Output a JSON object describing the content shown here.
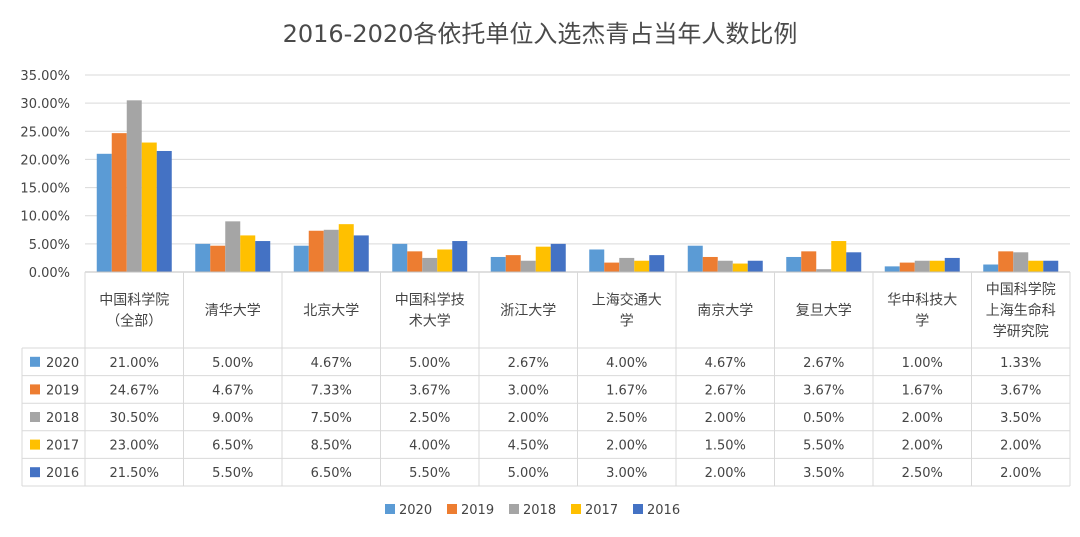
{
  "chart_data": {
    "type": "bar",
    "title": "2016-2020各依托单位入选杰青占当年人数比例",
    "categories": [
      [
        "中国科学院",
        "（全部）"
      ],
      [
        "清华大学"
      ],
      [
        "北京大学"
      ],
      [
        "中国科学技",
        "术大学"
      ],
      [
        "浙江大学"
      ],
      [
        "上海交通大",
        "学"
      ],
      [
        "南京大学"
      ],
      [
        "复旦大学"
      ],
      [
        "华中科技大",
        "学"
      ],
      [
        "中国科学院",
        "上海生命科",
        "学研究院"
      ]
    ],
    "ylim": [
      0,
      35
    ],
    "yticks": [
      "0.00%",
      "5.00%",
      "10.00%",
      "15.00%",
      "20.00%",
      "25.00%",
      "30.00%",
      "35.00%"
    ],
    "grid": true,
    "legend_position": "bottom",
    "series": [
      {
        "name": "2020",
        "color": "#5b9bd5",
        "values": [
          21.0,
          5.0,
          4.67,
          5.0,
          2.67,
          4.0,
          4.67,
          2.67,
          1.0,
          1.33
        ],
        "labels": [
          "21.00%",
          "5.00%",
          "4.67%",
          "5.00%",
          "2.67%",
          "4.00%",
          "4.67%",
          "2.67%",
          "1.00%",
          "1.33%"
        ]
      },
      {
        "name": "2019",
        "color": "#ed7d31",
        "values": [
          24.67,
          4.67,
          7.33,
          3.67,
          3.0,
          1.67,
          2.67,
          3.67,
          1.67,
          3.67
        ],
        "labels": [
          "24.67%",
          "4.67%",
          "7.33%",
          "3.67%",
          "3.00%",
          "1.67%",
          "2.67%",
          "3.67%",
          "1.67%",
          "3.67%"
        ]
      },
      {
        "name": "2018",
        "color": "#a5a5a5",
        "values": [
          30.5,
          9.0,
          7.5,
          2.5,
          2.0,
          2.5,
          2.0,
          0.5,
          2.0,
          3.5
        ],
        "labels": [
          "30.50%",
          "9.00%",
          "7.50%",
          "2.50%",
          "2.00%",
          "2.50%",
          "2.00%",
          "0.50%",
          "2.00%",
          "3.50%"
        ]
      },
      {
        "name": "2017",
        "color": "#ffc000",
        "values": [
          23.0,
          6.5,
          8.5,
          4.0,
          4.5,
          2.0,
          1.5,
          5.5,
          2.0,
          2.0
        ],
        "labels": [
          "23.00%",
          "6.50%",
          "8.50%",
          "4.00%",
          "4.50%",
          "2.00%",
          "1.50%",
          "5.50%",
          "2.00%",
          "2.00%"
        ]
      },
      {
        "name": "2016",
        "color": "#4472c4",
        "values": [
          21.5,
          5.5,
          6.5,
          5.5,
          5.0,
          3.0,
          2.0,
          3.5,
          2.5,
          2.0
        ],
        "labels": [
          "21.50%",
          "5.50%",
          "6.50%",
          "5.50%",
          "5.00%",
          "3.00%",
          "2.00%",
          "3.50%",
          "2.50%",
          "2.00%"
        ]
      }
    ]
  }
}
